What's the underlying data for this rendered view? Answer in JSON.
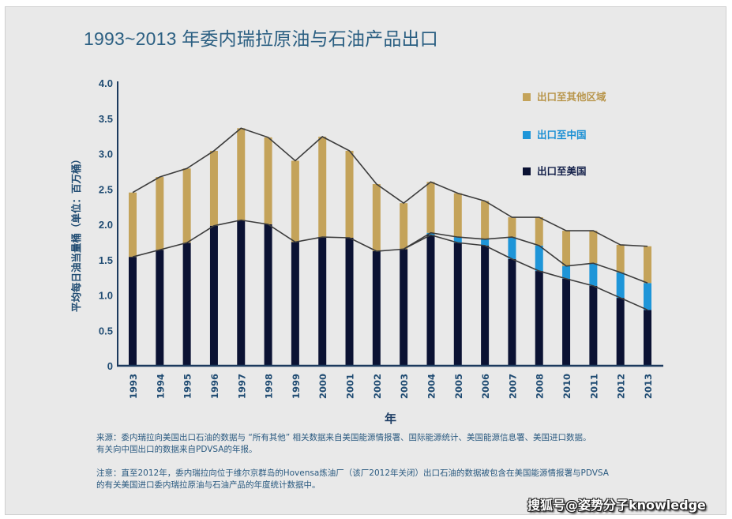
{
  "title": "1993~2013 年委内瑞拉原油与石油产品出口",
  "colors": {
    "other": "#c4a35a",
    "china": "#1e95d8",
    "us": "#0b1233",
    "axis": "#1c3a5e",
    "line": "#3c3c3c",
    "tick_label": "#1f4b72"
  },
  "chart_data": {
    "type": "bar",
    "stacked": true,
    "title": "1993~2013 年委内瑞拉原油与石油产品出口",
    "xlabel": "年",
    "ylabel": "平均每日油当量桶（单位：百万桶）",
    "ylim": [
      0,
      4.0
    ],
    "yticks": [
      "0",
      "0.5",
      "1.0",
      "1.5",
      "2.0",
      "2.5",
      "3.0",
      "3.5",
      "4.0"
    ],
    "grid": false,
    "legend_position": "top-right",
    "categories": [
      "1993",
      "1994",
      "1995",
      "1996",
      "1997",
      "1998",
      "1999",
      "2000",
      "2001",
      "2002",
      "2003",
      "2004",
      "2005",
      "2006",
      "2007",
      "2008",
      "2010",
      "2011",
      "2012",
      "2013"
    ],
    "series": [
      {
        "name": "出口至美国",
        "key": "us",
        "values": [
          1.54,
          1.64,
          1.74,
          1.98,
          2.06,
          2.0,
          1.75,
          1.82,
          1.81,
          1.62,
          1.65,
          1.85,
          1.74,
          1.7,
          1.51,
          1.34,
          1.23,
          1.13,
          0.96,
          0.79
        ]
      },
      {
        "name": "出口至中国",
        "key": "china",
        "values": [
          0,
          0,
          0,
          0,
          0,
          0,
          0,
          0,
          0,
          0,
          0,
          0.03,
          0.08,
          0.09,
          0.31,
          0.36,
          0.18,
          0.32,
          0.36,
          0.38
        ]
      },
      {
        "name": "出口至其他区域",
        "key": "other",
        "values": [
          0.91,
          1.03,
          1.05,
          1.06,
          1.3,
          1.23,
          1.15,
          1.42,
          1.23,
          0.95,
          0.65,
          0.72,
          0.62,
          0.54,
          0.28,
          0.4,
          0.5,
          0.46,
          0.39,
          0.52
        ]
      }
    ],
    "totals": [
      2.45,
      2.67,
      2.79,
      3.04,
      3.36,
      3.23,
      2.9,
      3.24,
      3.04,
      2.57,
      2.3,
      2.6,
      2.44,
      2.33,
      2.1,
      2.1,
      1.91,
      1.91,
      1.71,
      1.69
    ]
  },
  "legend": [
    {
      "label": "出口至其他区域",
      "key": "other"
    },
    {
      "label": "出口至中国",
      "key": "china"
    },
    {
      "label": "出口至美国",
      "key": "us"
    }
  ],
  "notes": {
    "source_line1": "来源：委内瑞拉向美国出口石油的数据与 “所有其他” 相关数据来自美国能源情报署、国际能源统计、美国能源信息署、美国进口数据。",
    "source_line2": "有关向中国出口的数据来自PDVSA的年报。",
    "note_line1": "注意：直至2012年，委内瑞拉向位于维尔京群岛的Hovensa炼油厂（该厂2012年关闭）出口石油的数据被包含在美国能源情报署与PDVSA",
    "note_line2": "的有关美国进口委内瑞拉原油与石油产品的年度统计数据中。"
  },
  "watermark": "搜狐号@姿势分子knowledge"
}
